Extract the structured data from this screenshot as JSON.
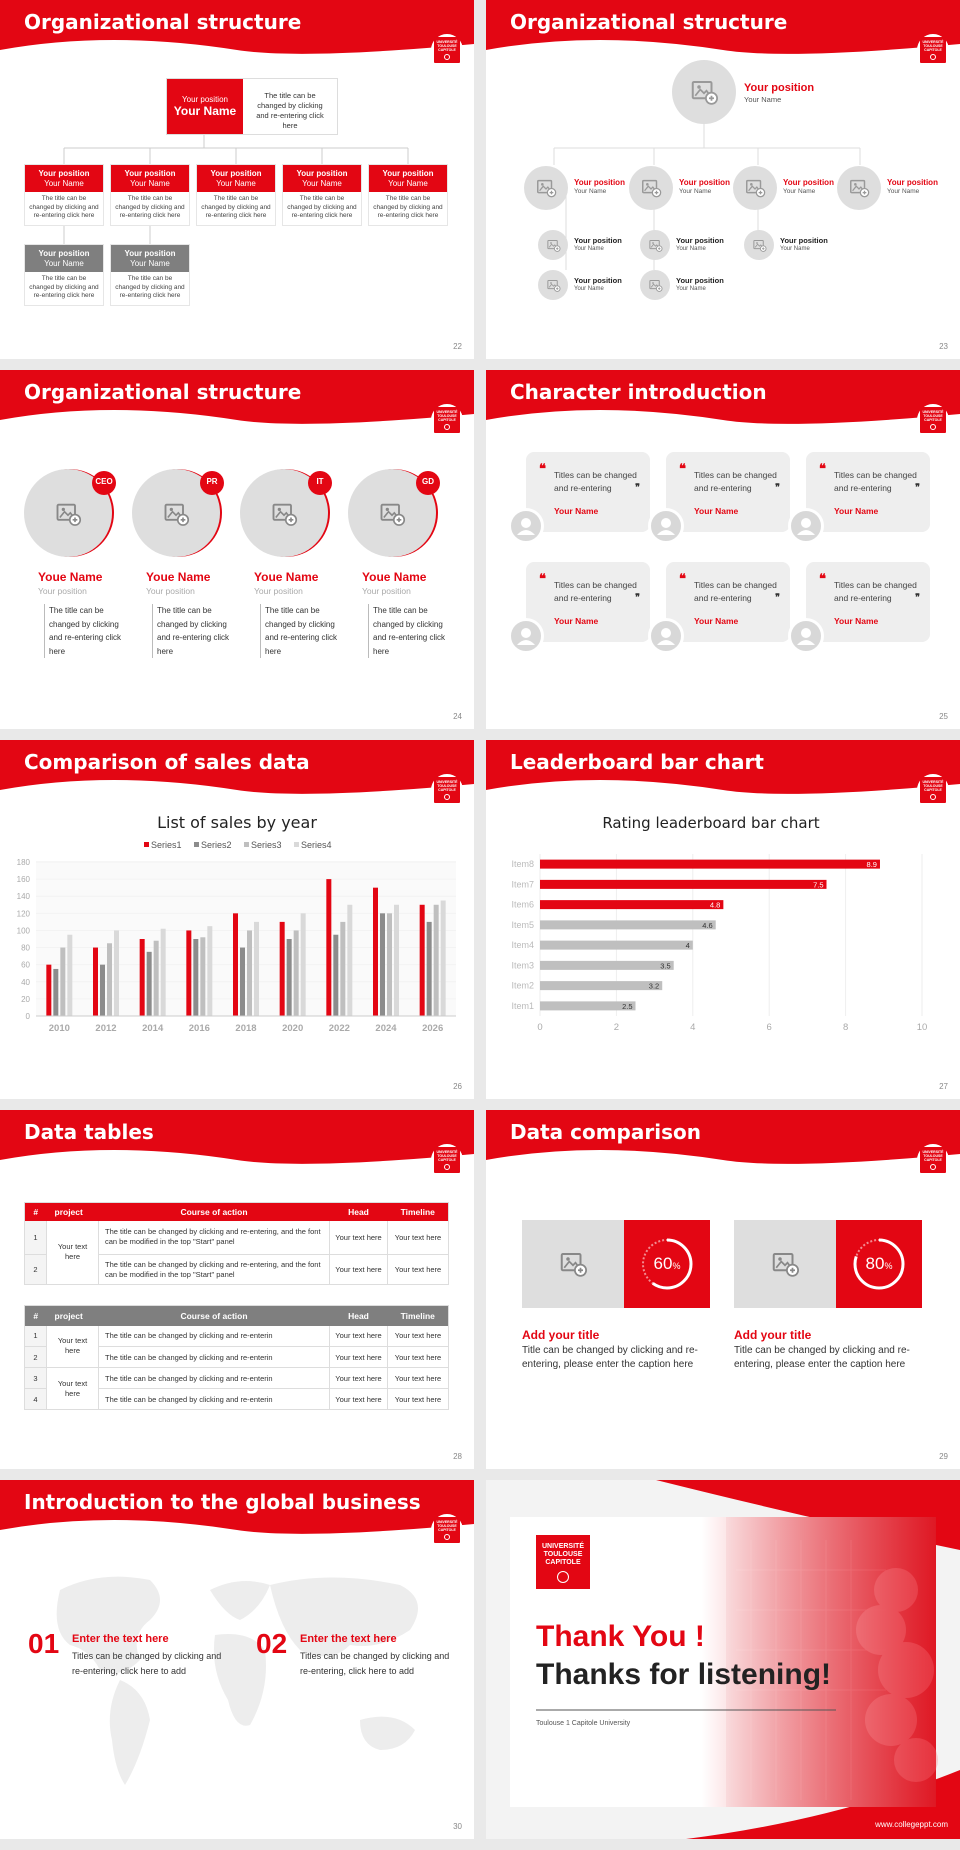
{
  "theme": {
    "accent": "#e30613",
    "grey": "#7f7f7f",
    "light": "#dedede"
  },
  "logo_text": [
    "UNIVERSITÉ",
    "TOULOUSE",
    "CAPITOLE"
  ],
  "slides": {
    "s22": {
      "title": "Organizational structure",
      "page": "22",
      "top": {
        "position": "Your position",
        "name": "Your Name",
        "text": "The title can be changed by clicking and re-entering click here"
      },
      "boxes": [
        {
          "position": "Your position",
          "name": "Your Name",
          "text": "The title can be changed by clicking and re-entering click here"
        },
        {
          "position": "Your position",
          "name": "Your Name",
          "text": "The title can be changed by clicking and re-entering click here"
        },
        {
          "position": "Your position",
          "name": "Your Name",
          "text": "The title can be changed by clicking and re-entering click here"
        },
        {
          "position": "Your position",
          "name": "Your Name",
          "text": "The title can be changed by clicking and re-entering click here"
        },
        {
          "position": "Your position",
          "name": "Your Name",
          "text": "The title can be changed by clicking and re-entering click here"
        },
        {
          "position": "Your position",
          "name": "Your Name",
          "text": "The title can be changed by clicking and re-entering click here"
        },
        {
          "position": "Your position",
          "name": "Your Name",
          "text": "The title can be changed by clicking and re-entering click here"
        }
      ]
    },
    "s23": {
      "title": "Organizational structure",
      "page": "23",
      "top": {
        "position": "Your position",
        "name": "Your Name"
      },
      "mid": [
        {
          "position": "Your position",
          "name": "Your Name"
        },
        {
          "position": "Your position",
          "name": "Your Name"
        },
        {
          "position": "Your position",
          "name": "Your Name"
        },
        {
          "position": "Your position",
          "name": "Your Name"
        }
      ],
      "small": [
        {
          "position": "Your position",
          "name": "Your Name"
        },
        {
          "position": "Your position",
          "name": "Your Name"
        },
        {
          "position": "Your position",
          "name": "Your Name"
        },
        {
          "position": "Your position",
          "name": "Your Name"
        },
        {
          "position": "Your position",
          "name": "Your Name"
        },
        {
          "position": "Your position",
          "name": "Your Name"
        }
      ]
    },
    "s24": {
      "title": "Organizational structure",
      "page": "24",
      "people": [
        {
          "tag": "CEO",
          "name": "Youe Name",
          "position": "Your position",
          "text": "The title can be changed by clicking and re-entering click here"
        },
        {
          "tag": "PR",
          "name": "Youe Name",
          "position": "Your position",
          "text": "The title can be changed by clicking and re-entering click here"
        },
        {
          "tag": "IT",
          "name": "Youe Name",
          "position": "Your position",
          "text": "The title can be changed by clicking and re-entering click here"
        },
        {
          "tag": "GD",
          "name": "Youe Name",
          "position": "Your position",
          "text": "The title can be changed by clicking and re-entering click here"
        }
      ]
    },
    "s25": {
      "title": "Character introduction",
      "page": "25",
      "cards": [
        {
          "text": "Titles can be changed and re-entering",
          "name": "Your Name"
        },
        {
          "text": "Titles can be changed and re-entering",
          "name": "Your Name"
        },
        {
          "text": "Titles can be changed and re-entering",
          "name": "Your Name"
        },
        {
          "text": "Titles can be changed and re-entering",
          "name": "Your Name"
        },
        {
          "text": "Titles can be changed and re-entering",
          "name": "Your Name"
        },
        {
          "text": "Titles can be changed and re-entering",
          "name": "Your Name"
        }
      ]
    },
    "s26": {
      "title": "Comparison of sales data",
      "page": "26"
    },
    "s27": {
      "title": "Leaderboard bar chart",
      "page": "27"
    },
    "s28": {
      "title": "Data tables",
      "page": "28",
      "table1": {
        "headers": [
          "#",
          "project",
          "Course of action",
          "Head",
          "Timeline"
        ],
        "merged": "Your text here",
        "rows": [
          {
            "n": "1",
            "action": "The title can be changed by clicking and re-entering, and the font can be modified in the top \"Start\" panel",
            "head": "Your text here",
            "time": "Your text here"
          },
          {
            "n": "2",
            "action": "The title can be changed by clicking and re-entering, and the font can be modified in the top \"Start\" panel",
            "head": "Your text here",
            "time": "Your text here"
          }
        ]
      },
      "table2": {
        "headers": [
          "#",
          "project",
          "Course of action",
          "Head",
          "Timeline"
        ],
        "merged1": "Your text here",
        "merged2": "Your text here",
        "rows": [
          {
            "n": "1",
            "action": "The title can be changed by clicking and re-enterin",
            "head": "Your text here",
            "time": "Your text here"
          },
          {
            "n": "2",
            "action": "The title can be changed by clicking and re-enterin",
            "head": "Your text here",
            "time": "Your text here"
          },
          {
            "n": "3",
            "action": "The title can be changed by clicking and re-enterin",
            "head": "Your text here",
            "time": "Your text here"
          },
          {
            "n": "4",
            "action": "The title can be changed by clicking and re-enterin",
            "head": "Your text here",
            "time": "Your text here"
          }
        ]
      }
    },
    "s29": {
      "title": "Data comparison",
      "page": "29",
      "items": [
        {
          "percent": "60",
          "unit": "%",
          "fraction": 0.6,
          "title": "Add your title",
          "text": "Title can be changed by clicking and re-entering, please enter the caption here"
        },
        {
          "percent": "80",
          "unit": "%",
          "fraction": 0.8,
          "title": "Add your title",
          "text": "Title can be changed by clicking and re-entering, please enter the caption here"
        }
      ]
    },
    "s30": {
      "title": "Introduction to the global business",
      "page": "30",
      "items": [
        {
          "num": "01",
          "title": "Enter the text here",
          "text": "Titles can be changed by clicking and re-entering, click here to add"
        },
        {
          "num": "02",
          "title": "Enter the text here",
          "text": "Titles can be changed by clicking and re-entering, click here to add"
        }
      ]
    },
    "s31": {
      "thank": "Thank You !",
      "thanks": "Thanks for listening!",
      "university": "Toulouse 1 Capitole University",
      "url": "www.collegeppt.com"
    }
  },
  "chart_data": [
    {
      "type": "bar",
      "title": "List of sales by year",
      "categories": [
        "2010",
        "2012",
        "2014",
        "2016",
        "2018",
        "2020",
        "2022",
        "2024",
        "2026"
      ],
      "series": [
        {
          "name": "Series1",
          "color": "#e30613",
          "values": [
            60,
            80,
            90,
            100,
            120,
            110,
            160,
            150,
            130
          ]
        },
        {
          "name": "Series2",
          "color": "#8c8c8c",
          "values": [
            55,
            60,
            75,
            90,
            80,
            90,
            95,
            120,
            110
          ]
        },
        {
          "name": "Series3",
          "color": "#bfbfbf",
          "values": [
            80,
            85,
            88,
            92,
            100,
            100,
            110,
            120,
            130
          ]
        },
        {
          "name": "Series4",
          "color": "#d9d9d9",
          "values": [
            95,
            100,
            102,
            105,
            110,
            120,
            130,
            130,
            135
          ]
        }
      ],
      "ylim": [
        0,
        180
      ],
      "yticks": [
        "0",
        "20",
        "40",
        "60",
        "80",
        "100",
        "120",
        "140",
        "160",
        "180"
      ],
      "legend": "top",
      "grid": true
    },
    {
      "type": "bar",
      "orientation": "horizontal",
      "title": "Rating leaderboard bar chart",
      "categories": [
        "Item8",
        "Item7",
        "Item6",
        "Item5",
        "Item4",
        "Item3",
        "Item2",
        "Item1"
      ],
      "values": [
        8.9,
        7.5,
        4.8,
        4.6,
        4,
        3.5,
        3.2,
        2.5
      ],
      "labels": [
        "8.9",
        "7.5",
        "4.8",
        "4.6",
        "4",
        "3.5",
        "3.2",
        "2.5"
      ],
      "colors": [
        "#e30613",
        "#e30613",
        "#e30613",
        "#bfbfbf",
        "#bfbfbf",
        "#bfbfbf",
        "#bfbfbf",
        "#bfbfbf"
      ],
      "xlim": [
        0,
        10
      ],
      "xticks": [
        "0",
        "2",
        "4",
        "6",
        "8",
        "10"
      ],
      "grid": true
    }
  ]
}
